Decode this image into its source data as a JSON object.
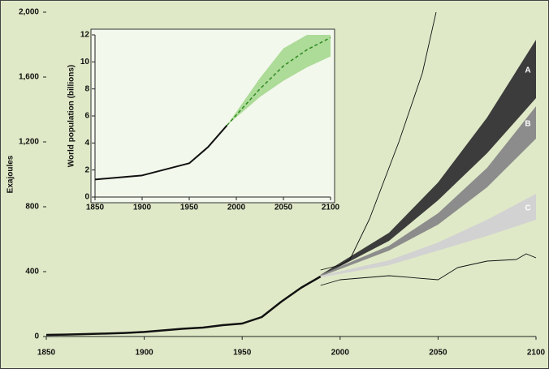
{
  "chart_data": [
    {
      "type": "line",
      "y_label": "Exajoules",
      "xlim": [
        1850,
        2100
      ],
      "ylim": [
        0,
        2000
      ],
      "xticks": [
        1850,
        1900,
        1950,
        2000,
        2050,
        2100
      ],
      "yticks": [
        0,
        400,
        800,
        {
          "value": 1200,
          "label": "1,200"
        },
        {
          "value": 1600,
          "label": "1,600"
        },
        {
          "value": 2000,
          "label": "2,000"
        }
      ],
      "bands": [
        {
          "name": "A",
          "color": "#3c3c3c",
          "x": [
            1990,
            2025,
            2050,
            2075,
            2100
          ],
          "upper": [
            380,
            640,
            950,
            1350,
            1830
          ],
          "lower": [
            370,
            590,
            840,
            1130,
            1470
          ]
        },
        {
          "name": "B",
          "color": "#8c8c8c",
          "x": [
            1990,
            2025,
            2050,
            2075,
            2100
          ],
          "upper": [
            380,
            560,
            760,
            1040,
            1420
          ],
          "lower": [
            370,
            530,
            690,
            920,
            1220
          ]
        },
        {
          "name": "C",
          "color": "#d2d2d2",
          "x": [
            1990,
            2025,
            2050,
            2075,
            2100
          ],
          "upper": [
            375,
            470,
            580,
            720,
            880
          ],
          "lower": [
            365,
            440,
            530,
            620,
            720
          ]
        }
      ],
      "series": [
        {
          "color": "#111111",
          "width": 2.5,
          "x": [
            1850,
            1860,
            1870,
            1880,
            1890,
            1900,
            1910,
            1920,
            1930,
            1940,
            1950,
            1960,
            1970,
            1980,
            1990
          ],
          "values": [
            10,
            12,
            15,
            18,
            22,
            28,
            38,
            48,
            55,
            70,
            80,
            120,
            215,
            300,
            370
          ]
        },
        {
          "color": "#111111",
          "width": 0.9,
          "x": [
            1990,
            2000,
            2005,
            2015,
            2030,
            2042,
            2049
          ],
          "values": [
            410,
            440,
            475,
            725,
            1200,
            1625,
            2000
          ]
        },
        {
          "color": "#111111",
          "width": 0.9,
          "x": [
            1990,
            2000,
            2025,
            2050,
            2060,
            2075,
            2090,
            2095,
            2100
          ],
          "values": [
            315,
            350,
            375,
            350,
            425,
            465,
            475,
            510,
            485
          ]
        }
      ]
    },
    {
      "type": "line",
      "y_label": "World population (billions)",
      "xlim": [
        1850,
        2100
      ],
      "ylim": [
        0,
        12
      ],
      "xticks": [
        1850,
        1900,
        1950,
        2000,
        2050,
        2100
      ],
      "yticks": [
        0,
        2,
        4,
        6,
        8,
        10,
        12
      ],
      "bands": [
        {
          "color": "#8fcf75",
          "x": [
            1990,
            2025,
            2050,
            2075,
            2100
          ],
          "upper": [
            5.3,
            8.8,
            11,
            12,
            12
          ],
          "lower": [
            5.3,
            7.4,
            8.6,
            9.6,
            10.4
          ]
        }
      ],
      "series": [
        {
          "color": "#111111",
          "width": 2,
          "x": [
            1850,
            1900,
            1950,
            1970,
            1990
          ],
          "values": [
            1.3,
            1.6,
            2.5,
            3.7,
            5.3
          ]
        },
        {
          "color": "#2f8a22",
          "width": 1.5,
          "dashed": true,
          "x": [
            1990,
            2025,
            2050,
            2075,
            2100
          ],
          "values": [
            5.3,
            8.0,
            9.7,
            10.9,
            11.8
          ]
        }
      ]
    }
  ]
}
